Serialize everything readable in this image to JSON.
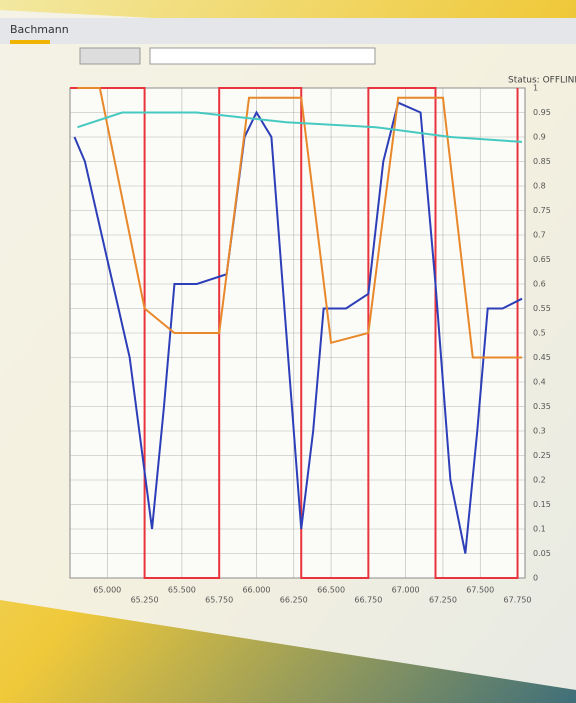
{
  "header": {
    "app": "Bachmann",
    "status": "Status: OFFLINE"
  },
  "chart_data": {
    "type": "line",
    "xlim": [
      64.75,
      67.8
    ],
    "xticks": [
      {
        "value": 65,
        "label": "65.000"
      },
      {
        "value": 65.25,
        "label": "65.250"
      },
      {
        "value": 65.5,
        "label": "65.500"
      },
      {
        "value": 65.75,
        "label": "65.750"
      },
      {
        "value": 66,
        "label": "66.000"
      },
      {
        "value": 66.25,
        "label": "66.250"
      },
      {
        "value": 66.5,
        "label": "66.500"
      },
      {
        "value": 66.75,
        "label": "66.750"
      },
      {
        "value": 67,
        "label": "67.000"
      },
      {
        "value": 67.25,
        "label": "67.250"
      },
      {
        "value": 67.5,
        "label": "67.500"
      },
      {
        "value": 67.75,
        "label": "67.750"
      }
    ],
    "ylim": [
      0,
      1
    ],
    "yticks": [
      0,
      0.05,
      0.1,
      0.15,
      0.2,
      0.25,
      0.3,
      0.35,
      0.4,
      0.45,
      0.5,
      0.55,
      0.6,
      0.65,
      0.7,
      0.75,
      0.8,
      0.85,
      0.9,
      0.95,
      1
    ],
    "grid": true,
    "series": [
      {
        "color": "#e8343c",
        "x": [
          64.75,
          65.25,
          65.25,
          65.75,
          65.75,
          66.3,
          66.3,
          66.75,
          66.75,
          67.2,
          67.2,
          67.75,
          67.75
        ],
        "values": [
          1,
          1,
          0,
          0,
          1,
          1,
          0,
          0,
          1,
          1,
          0,
          0,
          1
        ]
      },
      {
        "color": "#2d3fb8",
        "x": [
          64.78,
          64.85,
          65.0,
          65.15,
          65.3,
          65.38,
          65.45,
          65.6,
          65.8,
          65.92,
          66.0,
          66.1,
          66.2,
          66.3,
          66.38,
          66.45,
          66.6,
          66.75,
          66.85,
          66.95,
          67.1,
          67.2,
          67.3,
          67.4,
          67.48,
          67.55,
          67.65,
          67.78
        ],
        "values": [
          0.9,
          0.85,
          0.65,
          0.45,
          0.1,
          0.35,
          0.6,
          0.6,
          0.62,
          0.9,
          0.95,
          0.9,
          0.5,
          0.1,
          0.3,
          0.55,
          0.55,
          0.58,
          0.85,
          0.97,
          0.95,
          0.6,
          0.2,
          0.05,
          0.3,
          0.55,
          0.55,
          0.57
        ]
      },
      {
        "color": "#e8882a",
        "x": [
          64.8,
          64.95,
          65.25,
          65.45,
          65.75,
          65.95,
          66.3,
          66.5,
          66.75,
          66.95,
          67.25,
          67.45,
          67.78
        ],
        "values": [
          1,
          1,
          0.55,
          0.5,
          0.5,
          0.98,
          0.98,
          0.48,
          0.5,
          0.98,
          0.98,
          0.45,
          0.45
        ]
      },
      {
        "color": "#46c9c0",
        "x": [
          64.8,
          65.1,
          65.6,
          66.2,
          66.8,
          67.3,
          67.78
        ],
        "values": [
          0.92,
          0.95,
          0.95,
          0.93,
          0.92,
          0.9,
          0.89
        ]
      }
    ]
  }
}
